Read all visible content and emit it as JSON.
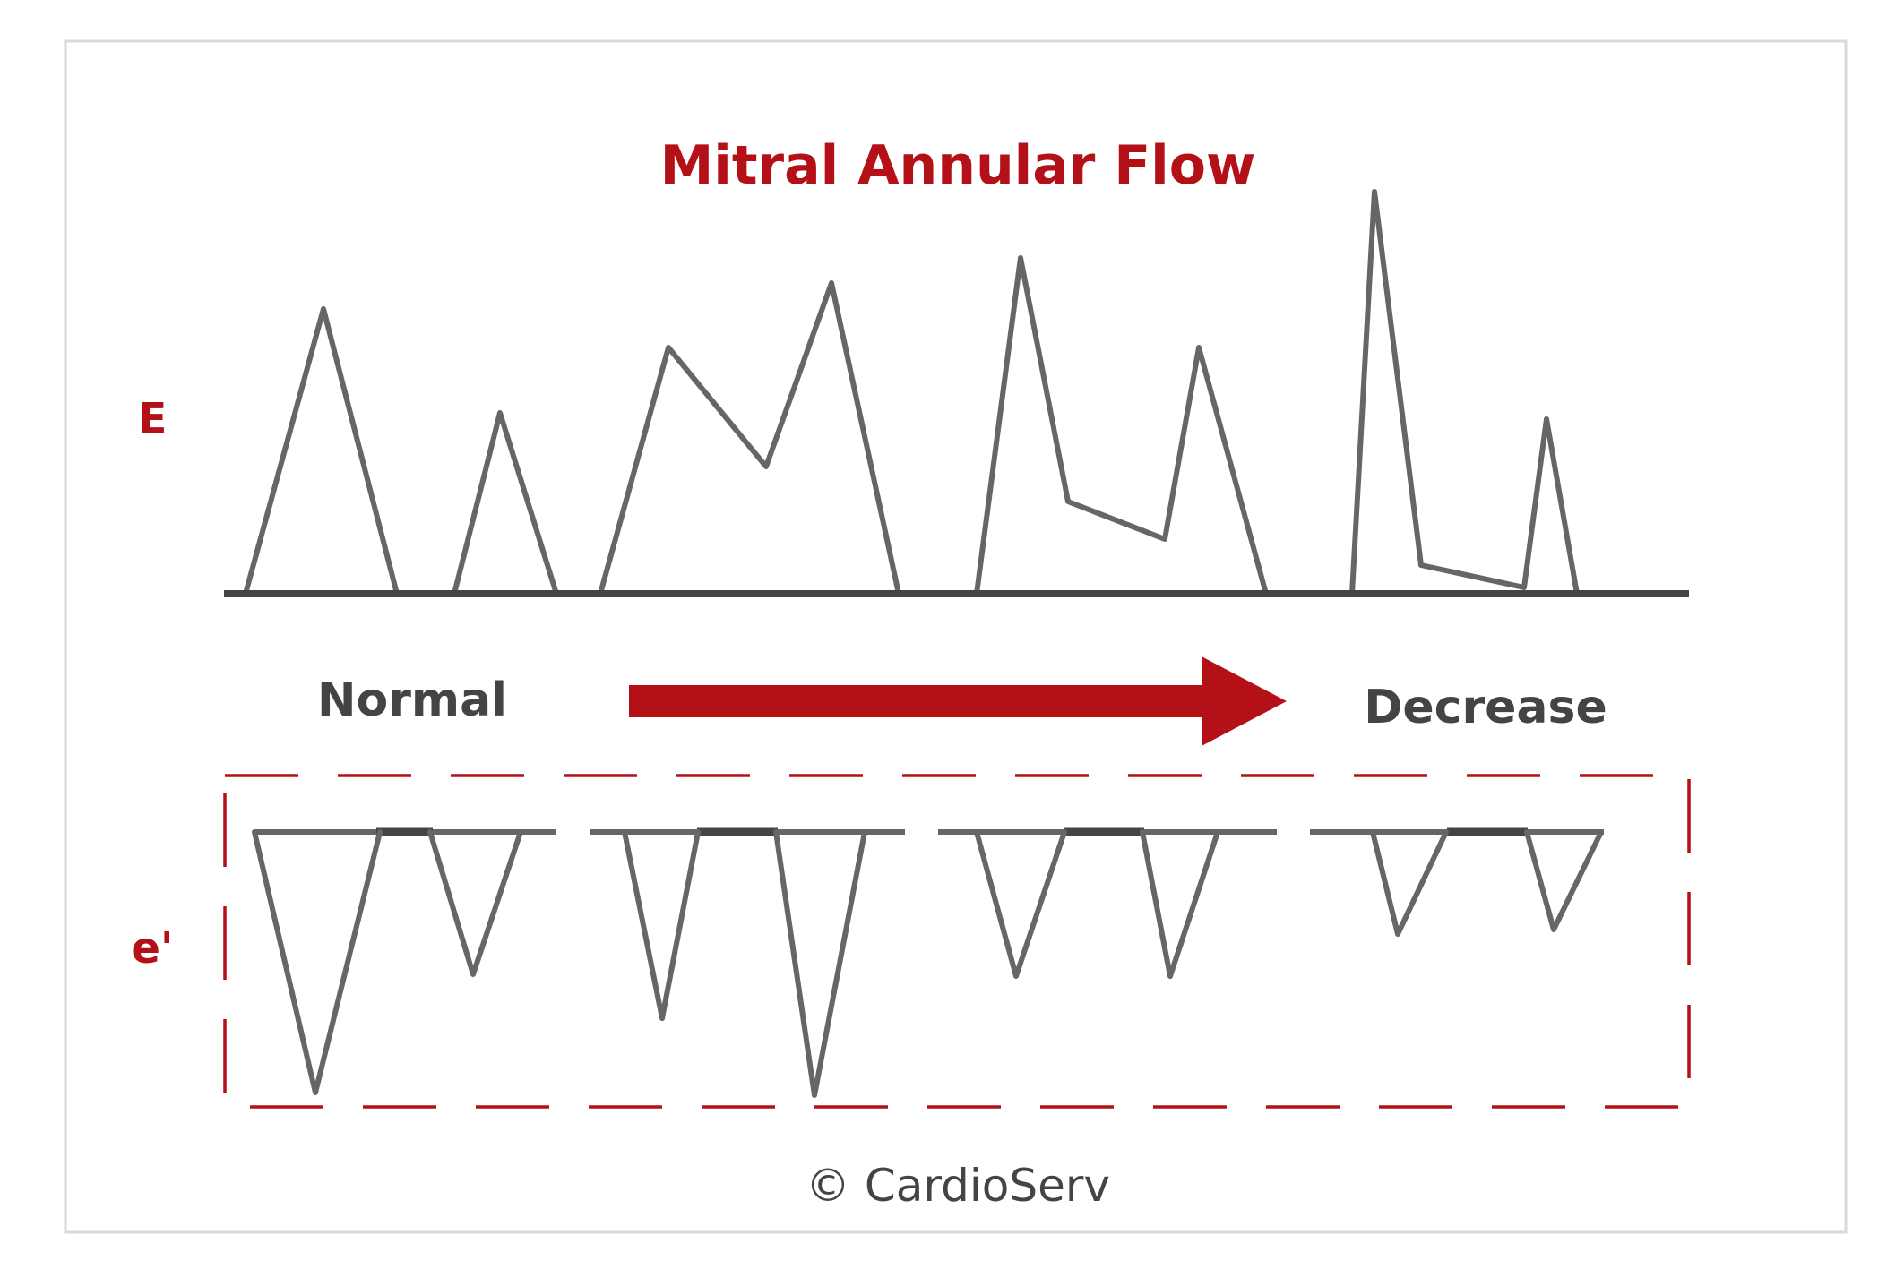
{
  "title": "Mitral Annular Flow",
  "labels": {
    "top": "E",
    "bottom": "e'"
  },
  "progression": {
    "start": "Normal",
    "end": "Decrease"
  },
  "copyright": "© CardioServ",
  "colors": {
    "accent": "#b31017",
    "line": "#666666",
    "baseline": "#444444",
    "text_dark": "#444444",
    "border": "#d9d9d9"
  }
}
